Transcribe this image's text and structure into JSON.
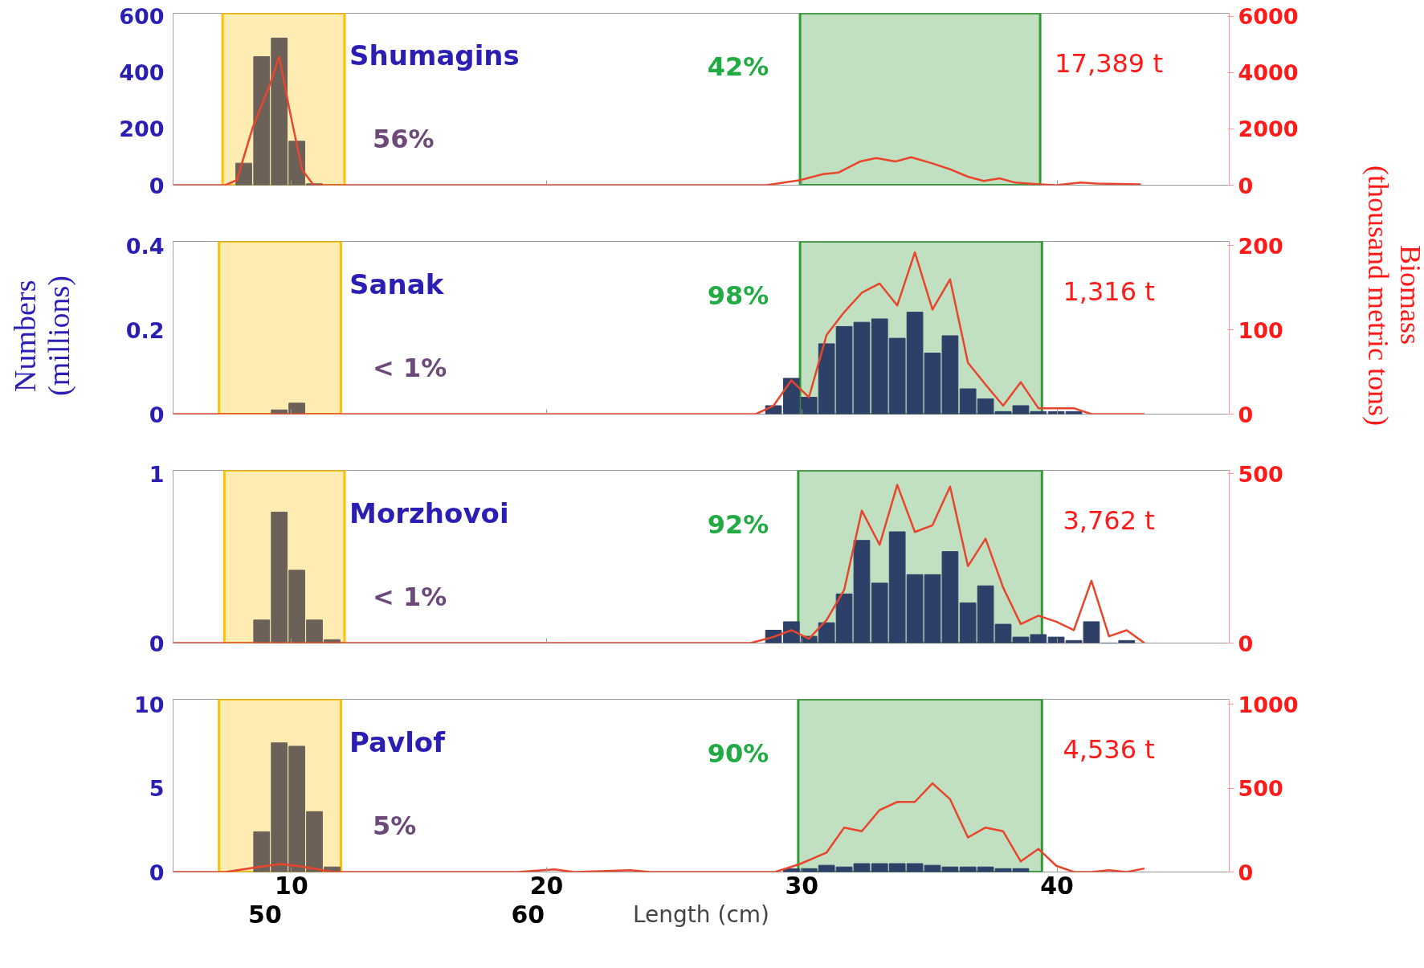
{
  "chart_data": [
    {
      "type": "bar",
      "xlim": [
        5.36,
        46.75
      ],
      "xticks": [
        10,
        20,
        30,
        40
      ],
      "ylim": [
        0,
        610
      ],
      "yticks": [
        0,
        200,
        400,
        600
      ],
      "y2lim": [
        0,
        6100
      ],
      "y2ticks": [
        0,
        2000,
        4000,
        6000
      ],
      "grid": false,
      "tick_labels": "y",
      "bands": [
        {
          "axis": "x",
          "from": 7.3,
          "to": 12.08,
          "color": "#ffc000"
        },
        {
          "axis": "x",
          "from": 29.93,
          "to": 39.34,
          "color": "#339933"
        }
      ],
      "annotations": [
        "Shumagins",
        "56%",
        "42%",
        "17,389 t"
      ],
      "series": [
        {
          "color": "#6b6158",
          "x": [
            8.13,
            8.83,
            9.52,
            10.21,
            10.9
          ],
          "values": [
            78,
            456,
            522,
            156,
            5
          ]
        },
        {
          "type": "line",
          "axis": "y2",
          "color": "#e8452c",
          "x": [
            5.37,
            7.41,
            7.86,
            8.48,
            9.14,
            9.52,
            9.93,
            10.42,
            10.87,
            28.62,
            29.93,
            30.83,
            31.45,
            32.28,
            32.91,
            33.67,
            34.29,
            35.09,
            35.88,
            36.51,
            37.13,
            37.75,
            38.37,
            39.34,
            39.97,
            40.93,
            41.56,
            43.29
          ],
          "values": [
            0,
            0,
            180,
            2040,
            3540,
            4560,
            2640,
            540,
            0,
            0,
            180,
            390,
            450,
            840,
            960,
            840,
            990,
            780,
            540,
            300,
            150,
            240,
            90,
            30,
            0,
            90,
            60,
            30
          ]
        }
      ]
    },
    {
      "type": "bar",
      "xlim": [
        5.36,
        46.75
      ],
      "xticks": [
        10,
        20,
        30,
        40
      ],
      "ylim": [
        0,
        0.41
      ],
      "yticks": [
        0,
        0.2,
        0.4
      ],
      "y2lim": [
        0,
        205
      ],
      "y2ticks": [
        0,
        100,
        200
      ],
      "grid": false,
      "tick_labels": "y",
      "ylabel": "Numbers\n(millions)",
      "y2label": "Biomass\n(thousand metric tons)",
      "bands": [
        {
          "axis": "x",
          "from": 7.16,
          "to": 11.94,
          "color": "#ffc000"
        },
        {
          "axis": "x",
          "from": 29.93,
          "to": 39.41,
          "color": "#339933"
        }
      ],
      "annotations": [
        "Sanak",
        "< 1%",
        "98%",
        "1,316 t"
      ],
      "series": [
        {
          "color": "#6b6158",
          "x": [
            9.52,
            10.21
          ],
          "values": [
            0.01,
            0.026
          ]
        },
        {
          "color": "#2e4068",
          "x": [
            28.89,
            29.59,
            30.28,
            30.97,
            31.66,
            32.35,
            33.05,
            33.74,
            34.43,
            35.12,
            35.81,
            36.51,
            37.2,
            37.89,
            38.58,
            39.27,
            39.97,
            40.66
          ],
          "values": [
            0.02,
            0.085,
            0.04,
            0.167,
            0.208,
            0.218,
            0.226,
            0.18,
            0.242,
            0.145,
            0.186,
            0.06,
            0.036,
            0.006,
            0.02,
            0.006,
            0.006,
            0.006
          ]
        },
        {
          "type": "line",
          "axis": "y2",
          "color": "#e8452c",
          "x": [
            5.37,
            28.2,
            28.89,
            29.59,
            30.28,
            30.97,
            31.66,
            32.35,
            33.05,
            33.74,
            34.43,
            35.12,
            35.81,
            36.51,
            37.2,
            37.89,
            38.58,
            39.27,
            39.97,
            40.66,
            41.35,
            43.43
          ],
          "values": [
            0,
            0,
            10,
            40,
            20,
            94,
            121,
            144,
            155,
            129,
            192,
            124,
            160,
            61,
            35,
            10,
            38,
            7,
            7,
            7,
            0,
            0
          ]
        }
      ]
    },
    {
      "type": "bar",
      "xlim": [
        5.36,
        46.75
      ],
      "xticks": [
        10,
        20,
        30,
        40
      ],
      "ylim": [
        0,
        1.02
      ],
      "yticks": [
        0,
        1
      ],
      "y2lim": [
        0,
        510
      ],
      "y2ticks": [
        0,
        500
      ],
      "grid": false,
      "tick_labels": "y",
      "bands": [
        {
          "axis": "x",
          "from": 7.37,
          "to": 12.08,
          "color": "#ffc000"
        },
        {
          "axis": "x",
          "from": 29.86,
          "to": 39.41,
          "color": "#339933"
        }
      ],
      "annotations": [
        "Morzhovoi",
        "< 1%",
        "92%",
        "3,762 t"
      ],
      "series": [
        {
          "color": "#6b6158",
          "x": [
            8.83,
            9.52,
            10.21,
            10.9,
            11.59
          ],
          "values": [
            0.136,
            0.773,
            0.43,
            0.136,
            0.02
          ]
        },
        {
          "color": "#2e4068",
          "x": [
            28.89,
            29.59,
            30.28,
            30.97,
            31.66,
            32.35,
            33.05,
            33.74,
            34.43,
            35.12,
            35.81,
            36.51,
            37.2,
            37.89,
            38.58,
            39.27,
            39.97,
            40.66,
            41.35,
            42.04,
            42.73
          ],
          "values": [
            0.076,
            0.126,
            0.04,
            0.12,
            0.29,
            0.606,
            0.354,
            0.657,
            0.404,
            0.404,
            0.54,
            0.237,
            0.338,
            0.111,
            0.035,
            0.05,
            0.035,
            0.015,
            0.126,
            0,
            0.015
          ]
        },
        {
          "type": "line",
          "axis": "y2",
          "color": "#e8452c",
          "x": [
            5.37,
            27.99,
            28.89,
            29.59,
            30.28,
            30.97,
            31.66,
            32.35,
            33.05,
            33.74,
            34.43,
            35.12,
            35.81,
            36.51,
            37.2,
            37.89,
            38.58,
            39.27,
            39.97,
            40.66,
            41.35,
            42.04,
            42.73,
            43.43
          ],
          "values": [
            0,
            0,
            18,
            38,
            13,
            68,
            157,
            391,
            290,
            467,
            328,
            348,
            462,
            227,
            308,
            164,
            56,
            81,
            63,
            38,
            184,
            20,
            38,
            0
          ]
        }
      ]
    },
    {
      "type": "bar",
      "xlim": [
        5.36,
        46.75
      ],
      "xticks": [
        10,
        20,
        30,
        40
      ],
      "ylim": [
        0,
        10.3
      ],
      "yticks": [
        0,
        5,
        10
      ],
      "y2lim": [
        0,
        1030
      ],
      "y2ticks": [
        0,
        500,
        1000
      ],
      "grid": false,
      "xlabel": "Length (cm)",
      "bands": [
        {
          "axis": "x",
          "from": 7.16,
          "to": 11.94,
          "color": "#ffc000"
        },
        {
          "axis": "x",
          "from": 29.86,
          "to": 39.41,
          "color": "#339933"
        }
      ],
      "annotations": [
        "Pavlof",
        "5%",
        "90%",
        "4,536 t",
        "50",
        "60"
      ],
      "series": [
        {
          "color": "#6b6158",
          "x": [
            8.83,
            9.52,
            10.21,
            10.9,
            11.59
          ],
          "values": [
            2.4,
            7.7,
            7.5,
            3.6,
            0.3
          ]
        },
        {
          "color": "#2e4068",
          "x": [
            29.59,
            30.28,
            30.97,
            31.66,
            32.35,
            33.05,
            33.74,
            34.43,
            35.12,
            35.81,
            36.51,
            37.2,
            37.89,
            38.58
          ],
          "values": [
            0.2,
            0.2,
            0.4,
            0.3,
            0.5,
            0.5,
            0.5,
            0.5,
            0.4,
            0.3,
            0.3,
            0.3,
            0.2,
            0.2
          ]
        },
        {
          "type": "line",
          "axis": "y2",
          "color": "#e8452c",
          "x": [
            5.37,
            7.41,
            8.83,
            9.59,
            10.42,
            11.66,
            18.86,
            20.31,
            21.08,
            23.29,
            24.05,
            28.96,
            29.93,
            30.97,
            31.66,
            32.35,
            33.05,
            33.74,
            34.43,
            35.12,
            35.81,
            36.51,
            37.2,
            37.89,
            38.58,
            39.27,
            39.97,
            40.66,
            41.35,
            42.04,
            42.73,
            43.43
          ],
          "values": [
            0,
            0,
            32,
            48,
            32,
            0,
            0,
            16,
            0,
            11,
            0,
            0,
            48,
            116,
            265,
            243,
            370,
            418,
            418,
            529,
            434,
            206,
            265,
            243,
            63,
            138,
            37,
            0,
            0,
            11,
            0,
            21
          ]
        }
      ]
    }
  ]
}
